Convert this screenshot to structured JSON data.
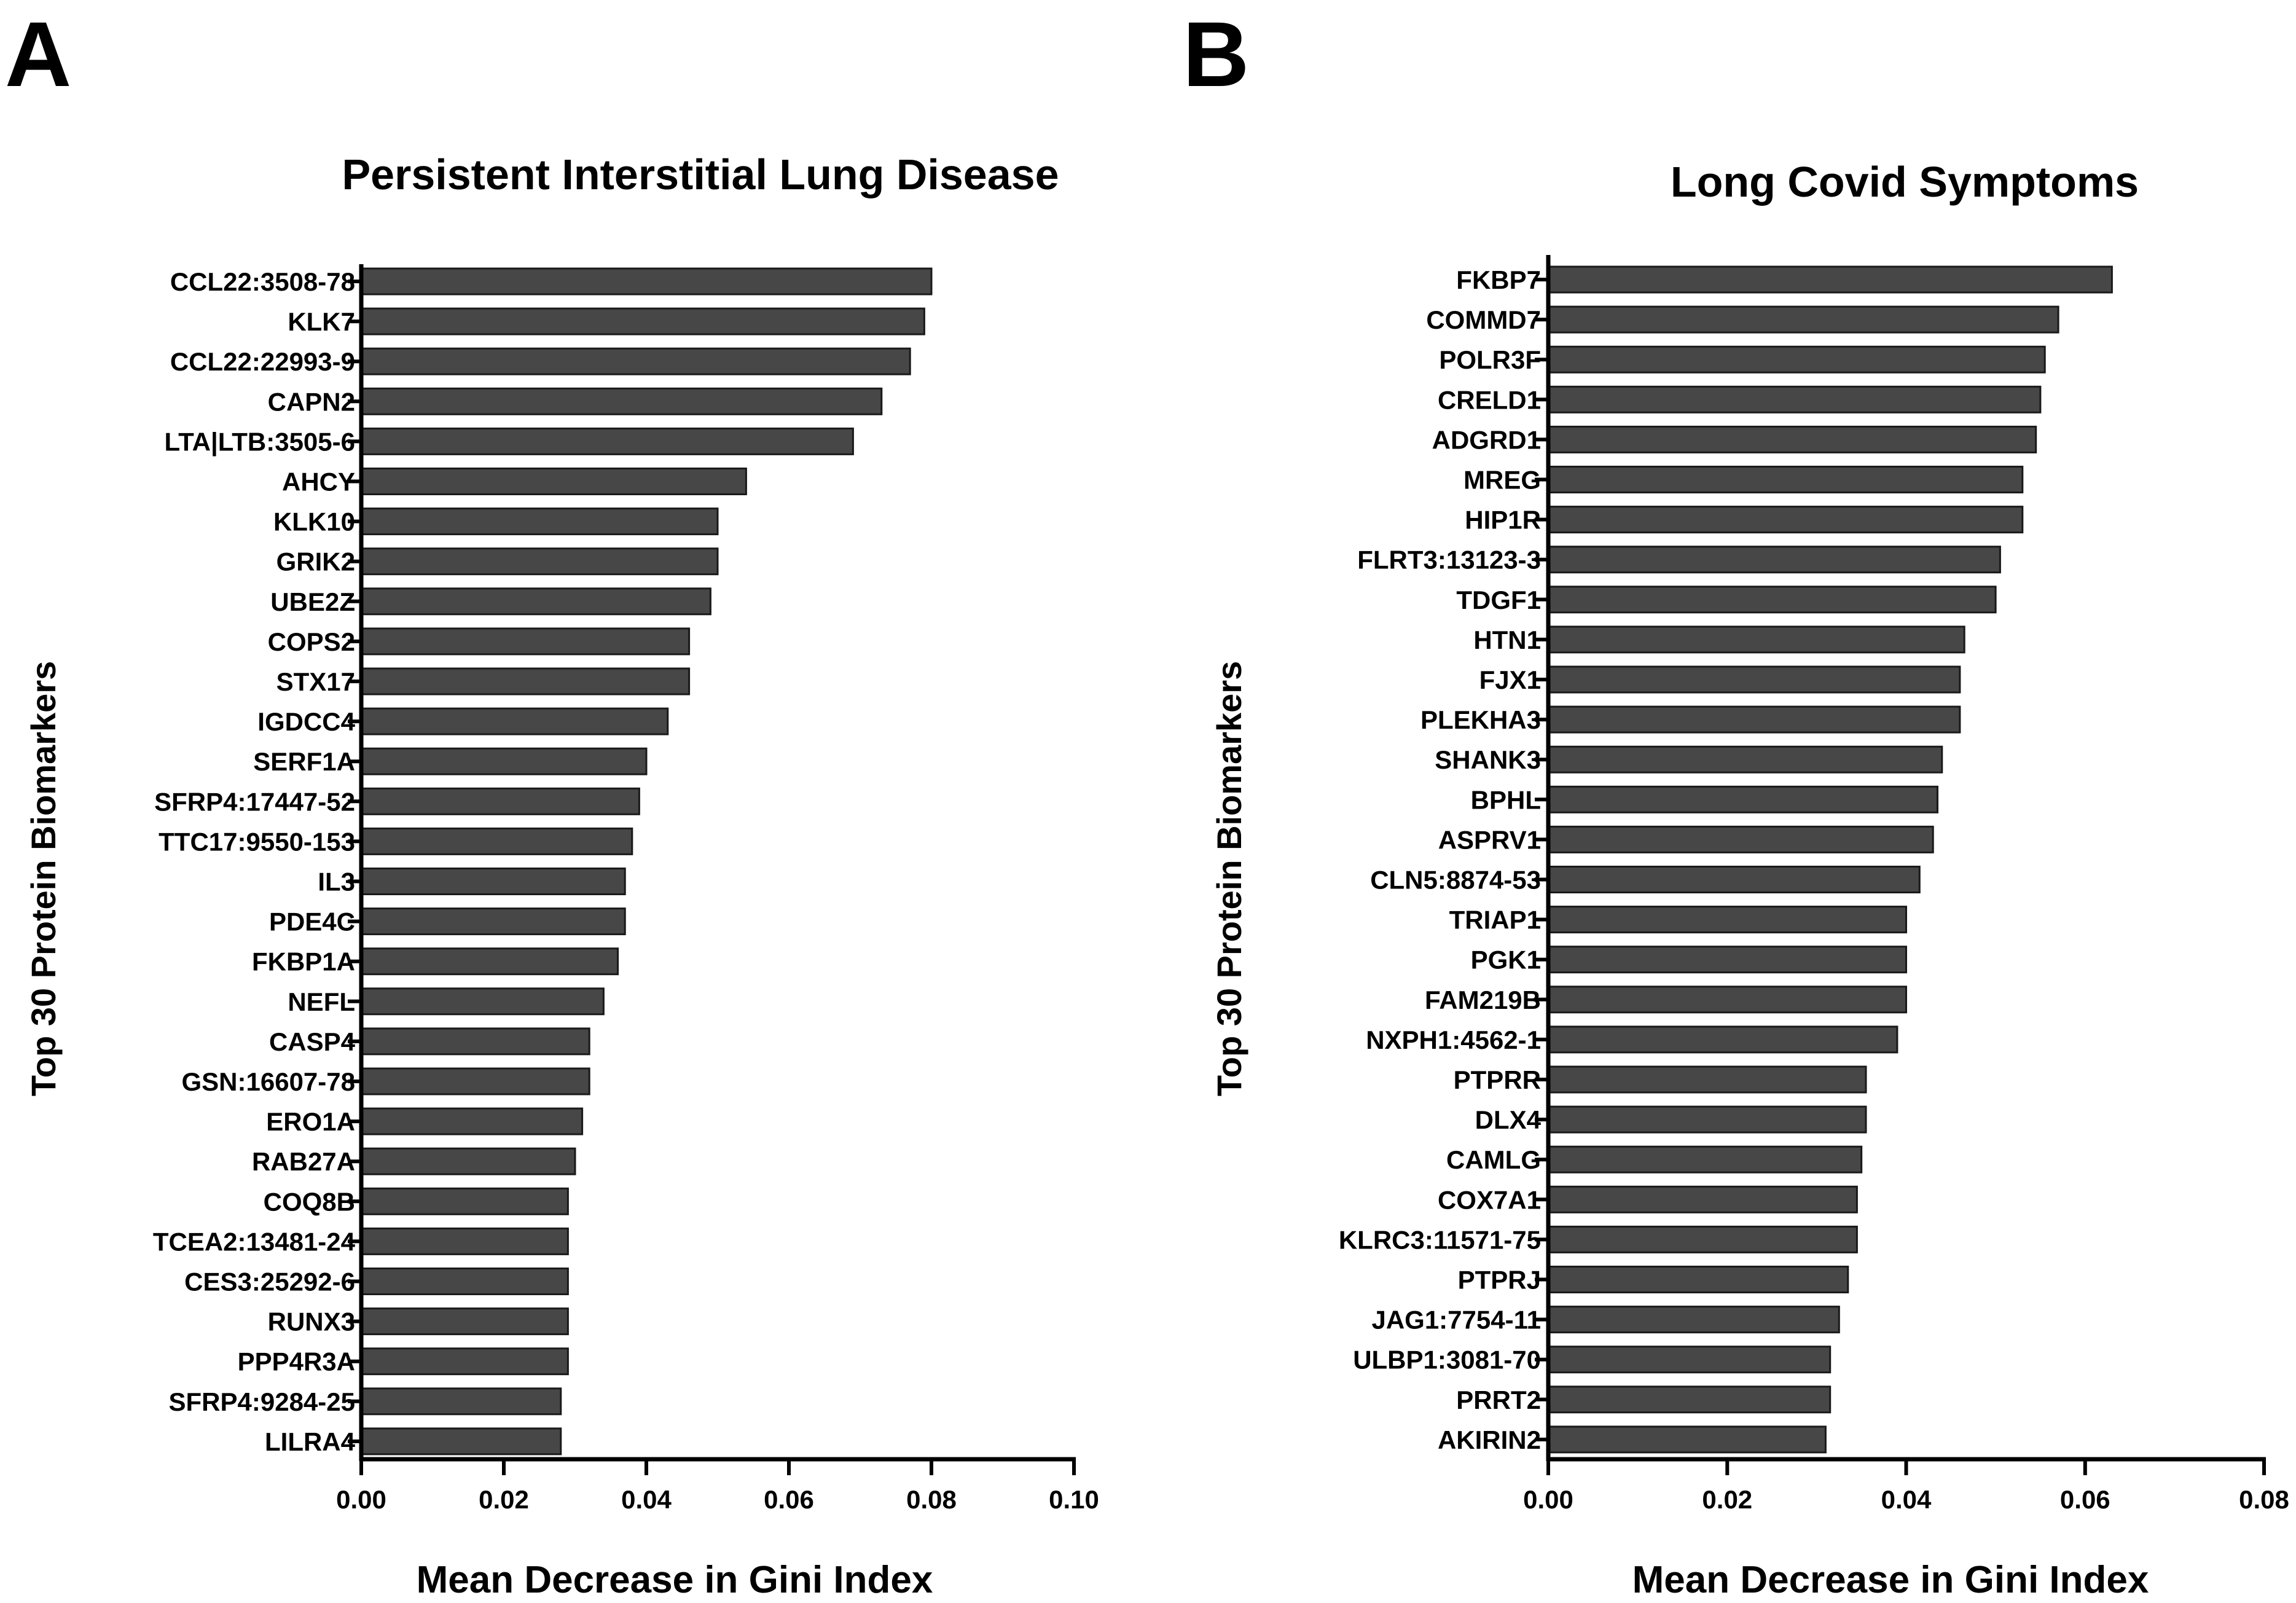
{
  "chart_data": [
    {
      "panel": "A",
      "type": "bar",
      "orientation": "horizontal",
      "title": "Persistent Interstitial Lung Disease",
      "xlabel": "Mean Decrease in Gini Index",
      "ylabel": "Top 30 Protein Biomarkers",
      "xlim": [
        0,
        0.1
      ],
      "xticks": [
        "0.00",
        "0.02",
        "0.04",
        "0.06",
        "0.08",
        "0.10"
      ],
      "xtick_values": [
        0,
        0.02,
        0.04,
        0.06,
        0.08,
        0.1
      ],
      "categories": [
        "CCL22:3508-78",
        "KLK7",
        "CCL22:22993-9",
        "CAPN2",
        "LTA|LTB:3505-6",
        "AHCY",
        "KLK10",
        "GRIK2",
        "UBE2Z",
        "COPS2",
        "STX17",
        "IGDCC4",
        "SERF1A",
        "SFRP4:17447-52",
        "TTC17:9550-153",
        "IL3",
        "PDE4C",
        "FKBP1A",
        "NEFL",
        "CASP4",
        "GSN:16607-78",
        "ERO1A",
        "RAB27A",
        "COQ8B",
        "TCEA2:13481-24",
        "CES3:25292-6",
        "RUNX3",
        "PPP4R3A",
        "SFRP4:9284-25",
        "LILRA4"
      ],
      "values": [
        0.08,
        0.079,
        0.077,
        0.073,
        0.069,
        0.054,
        0.05,
        0.05,
        0.049,
        0.046,
        0.046,
        0.043,
        0.04,
        0.039,
        0.038,
        0.037,
        0.037,
        0.036,
        0.034,
        0.032,
        0.032,
        0.031,
        0.03,
        0.029,
        0.029,
        0.029,
        0.029,
        0.029,
        0.028,
        0.028
      ]
    },
    {
      "panel": "B",
      "type": "bar",
      "orientation": "horizontal",
      "title": "Long Covid Symptoms",
      "xlabel": "Mean Decrease in Gini Index",
      "ylabel": "Top 30 Protein Biomarkers",
      "xlim": [
        0,
        0.08
      ],
      "xticks": [
        "0.00",
        "0.02",
        "0.04",
        "0.06",
        "0.08"
      ],
      "xtick_values": [
        0,
        0.02,
        0.04,
        0.06,
        0.08
      ],
      "categories": [
        "FKBP7",
        "COMMD7",
        "POLR3F",
        "CRELD1",
        "ADGRD1",
        "MREG",
        "HIP1R",
        "FLRT3:13123-3",
        "TDGF1",
        "HTN1",
        "FJX1",
        "PLEKHA3",
        "SHANK3",
        "BPHL",
        "ASPRV1",
        "CLN5:8874-53",
        "TRIAP1",
        "PGK1",
        "FAM219B",
        "NXPH1:4562-1",
        "PTPRR",
        "DLX4",
        "CAMLG",
        "COX7A1",
        "KLRC3:11571-75",
        "PTPRJ",
        "JAG1:7754-11",
        "ULBP1:3081-70",
        "PRRT2",
        "AKIRIN2"
      ],
      "values": [
        0.063,
        0.057,
        0.0555,
        0.055,
        0.0545,
        0.053,
        0.053,
        0.0505,
        0.05,
        0.0465,
        0.046,
        0.046,
        0.044,
        0.0435,
        0.043,
        0.0415,
        0.04,
        0.04,
        0.04,
        0.039,
        0.0355,
        0.0355,
        0.035,
        0.0345,
        0.0345,
        0.0335,
        0.0325,
        0.0315,
        0.0315,
        0.031
      ]
    }
  ]
}
